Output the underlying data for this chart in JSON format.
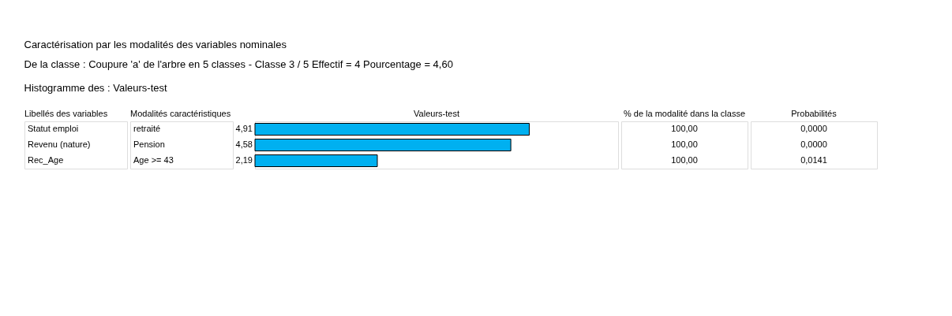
{
  "chart_data": {
    "type": "bar",
    "orientation": "horizontal",
    "title": "Caractérisation par les modalités des variables nominales",
    "subtitle": "De la classe :  Coupure 'a' de l'arbre en  5 classes  -  Classe  3 /  5      Effectif =  4    Pourcentage = 4,60",
    "ylabel": "Libellés des variables",
    "xlabel": "Valeurs-test",
    "categories": [
      "Statut emploi",
      "Revenu (nature)",
      "Rec_Age"
    ],
    "values": [
      4.91,
      4.58,
      2.19
    ],
    "color": "#00b0f0",
    "value_labels": [
      "4,91",
      "4,58",
      "2,19"
    ],
    "xlim": [
      0,
      6.5
    ],
    "annotations": [
      "Histogramme des :  Valeurs-test",
      "Modalités caractéristiques",
      "retraité",
      "Pension",
      "Age >= 43",
      "% de la modalité dans la classe",
      "100,00",
      "100,00",
      "100,00",
      "Probabilités",
      "0,0000",
      "0,0000",
      "0,0141"
    ]
  }
}
